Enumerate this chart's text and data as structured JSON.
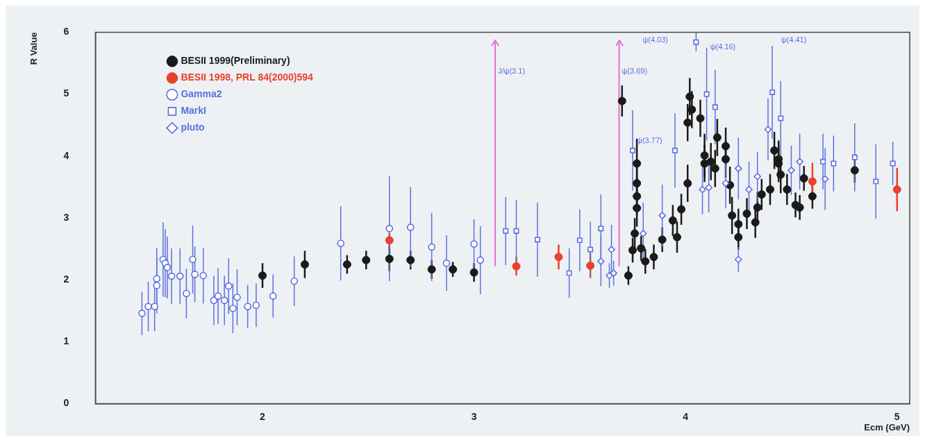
{
  "chart_data": {
    "type": "scatter",
    "xlabel": "Ecm (GeV)",
    "ylabel": "R Value",
    "xlim": [
      1.21,
      5.06
    ],
    "xticks": [
      2,
      3,
      4,
      5
    ],
    "ylim": [
      0,
      6
    ],
    "yticks": [
      0,
      1,
      2,
      3,
      4,
      5,
      6
    ],
    "grid": false,
    "legend": "top left",
    "series": [
      {
        "name": "BESII 1999(Preliminary)",
        "color": "#1a1a1a",
        "marker": "circle",
        "x": [
          2.0,
          2.2,
          2.4,
          2.49,
          2.6,
          2.7,
          2.8,
          2.9,
          3.0,
          3.7,
          3.73,
          3.75,
          3.76,
          3.77,
          3.77,
          3.77,
          3.77,
          3.79,
          3.81,
          3.85,
          3.89,
          3.94,
          3.96,
          3.98,
          4.01,
          4.01,
          4.02,
          4.03,
          4.07,
          4.09,
          4.09,
          4.12,
          4.14,
          4.15,
          4.19,
          4.19,
          4.21,
          4.22,
          4.25,
          4.25,
          4.29,
          4.33,
          4.34,
          4.36,
          4.4,
          4.42,
          4.44,
          4.44,
          4.45,
          4.48,
          4.52,
          4.54,
          4.56,
          4.6,
          4.8
        ],
        "values": [
          2.07,
          2.25,
          2.25,
          2.32,
          2.34,
          2.32,
          2.17,
          2.17,
          2.12,
          4.89,
          2.07,
          2.48,
          2.75,
          3.88,
          3.56,
          3.35,
          3.16,
          2.51,
          2.3,
          2.37,
          2.65,
          2.96,
          2.69,
          3.14,
          3.56,
          4.54,
          4.96,
          4.75,
          4.61,
          4.01,
          3.88,
          3.91,
          3.8,
          4.3,
          4.16,
          3.95,
          3.53,
          3.04,
          2.9,
          2.69,
          3.07,
          2.93,
          3.17,
          3.38,
          3.46,
          4.09,
          3.95,
          3.88,
          3.7,
          3.46,
          3.21,
          3.17,
          3.64,
          3.35,
          3.77
        ],
        "errors": [
          0.2,
          0.22,
          0.15,
          0.15,
          0.2,
          0.15,
          0.15,
          0.12,
          0.15,
          0.25,
          0.15,
          0.2,
          0.25,
          0.4,
          0.3,
          0.3,
          0.3,
          0.2,
          0.2,
          0.2,
          0.2,
          0.25,
          0.25,
          0.25,
          0.3,
          0.3,
          0.3,
          0.3,
          0.3,
          0.35,
          0.3,
          0.3,
          0.3,
          0.3,
          0.3,
          0.3,
          0.3,
          0.3,
          0.25,
          0.2,
          0.25,
          0.25,
          0.25,
          0.25,
          0.25,
          0.3,
          0.3,
          0.3,
          0.3,
          0.25,
          0.2,
          0.2,
          0.2,
          0.2,
          0.2
        ]
      },
      {
        "name": "BESII 1998, PRL 84(2000)594",
        "color": "#e8412c",
        "marker": "circle",
        "x": [
          2.6,
          3.2,
          3.4,
          3.55,
          4.6,
          5.0
        ],
        "values": [
          2.64,
          2.22,
          2.37,
          2.23,
          3.59,
          3.46
        ],
        "errors": [
          0.12,
          0.15,
          0.2,
          0.2,
          0.3,
          0.35
        ]
      },
      {
        "name": "Gamma2",
        "color": "#5b6fe0",
        "marker": "circle",
        "x": [
          1.43,
          1.46,
          1.49,
          1.5,
          1.5,
          1.53,
          1.54,
          1.55,
          1.57,
          1.61,
          1.64,
          1.67,
          1.68,
          1.72,
          1.77,
          1.79,
          1.82,
          1.84,
          1.86,
          1.88,
          1.93,
          1.97,
          2.05,
          2.15,
          2.37,
          2.6,
          2.7,
          2.8,
          2.87,
          3.0,
          3.03
        ],
        "values": [
          1.46,
          1.57,
          1.57,
          1.91,
          2.02,
          2.33,
          2.27,
          2.2,
          2.06,
          2.06,
          1.78,
          2.33,
          2.09,
          2.07,
          1.67,
          1.74,
          1.67,
          1.9,
          1.54,
          1.72,
          1.57,
          1.59,
          1.74,
          1.98,
          2.59,
          2.83,
          2.85,
          2.53,
          2.27,
          2.58,
          2.32
        ],
        "errors": [
          0.35,
          0.4,
          0.4,
          0.45,
          0.5,
          0.6,
          0.55,
          0.5,
          0.45,
          0.45,
          0.4,
          0.55,
          0.45,
          0.45,
          0.4,
          0.45,
          0.4,
          0.45,
          0.4,
          0.45,
          0.35,
          0.35,
          0.35,
          0.4,
          0.6,
          0.85,
          0.65,
          0.55,
          0.45,
          0.4,
          0.55
        ]
      },
      {
        "name": "MarkI",
        "color": "#5b6fe0",
        "marker": "square",
        "x": [
          3.15,
          3.2,
          3.3,
          3.45,
          3.5,
          3.55,
          3.6,
          3.75,
          3.95,
          4.05,
          4.1,
          4.14,
          4.41,
          4.45,
          4.65,
          4.7,
          4.8,
          4.9,
          4.98
        ],
        "values": [
          2.79,
          2.79,
          2.65,
          2.11,
          2.64,
          2.49,
          2.83,
          4.09,
          4.09,
          5.84,
          5.0,
          4.79,
          5.03,
          4.61,
          3.91,
          3.88,
          3.98,
          3.59,
          3.88
        ],
        "errors": [
          0.55,
          0.5,
          0.6,
          0.4,
          0.5,
          0.45,
          0.55,
          0.65,
          0.6,
          0.15,
          0.75,
          0.6,
          0.75,
          0.6,
          0.45,
          0.45,
          0.55,
          0.6,
          0.35
        ]
      },
      {
        "name": "pluto",
        "color": "#5b6fe0",
        "marker": "diamond",
        "x": [
          3.6,
          3.64,
          3.66,
          3.65,
          3.8,
          3.89,
          4.08,
          4.11,
          4.19,
          4.25,
          4.25,
          4.3,
          4.34,
          4.39,
          4.5,
          4.54,
          4.66
        ],
        "values": [
          2.3,
          2.07,
          2.11,
          2.49,
          2.75,
          3.04,
          3.46,
          3.49,
          3.56,
          3.8,
          2.33,
          3.46,
          3.67,
          4.43,
          3.77,
          3.91,
          3.63
        ],
        "errors": [
          0.4,
          0.2,
          0.2,
          0.4,
          0.5,
          0.5,
          0.4,
          0.4,
          0.4,
          0.5,
          0.2,
          0.45,
          0.4,
          0.5,
          0.4,
          0.45,
          0.5
        ]
      }
    ],
    "ref_lines": [
      {
        "axis": "x",
        "value": 3.1,
        "label": "J/ψ(3.1)",
        "color": "#e070d0"
      },
      {
        "axis": "x",
        "value": 3.686,
        "label": "ψ(3.69)",
        "color": "#e070d0"
      }
    ],
    "annotations": [
      {
        "text": "ψ(3.77)",
        "x": 3.77,
        "y": 4.25
      },
      "ψ(4.03)",
      "ψ(4.16)",
      "ψ(4.41)"
    ]
  }
}
